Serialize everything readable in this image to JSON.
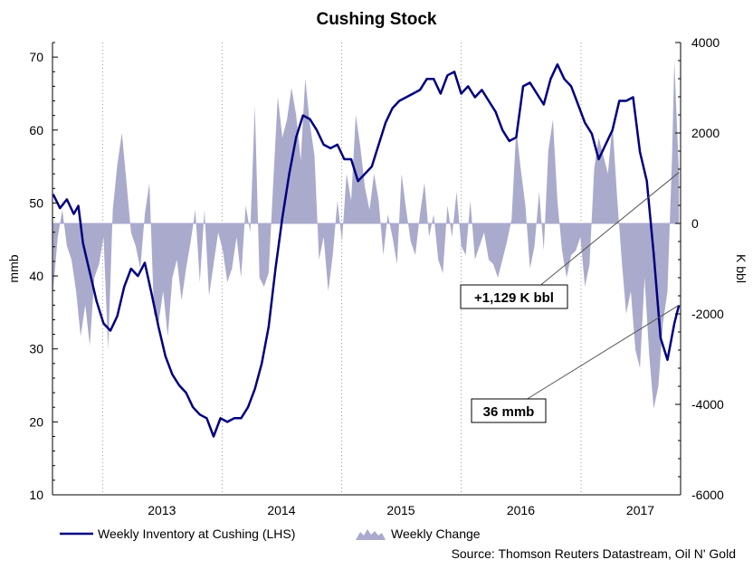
{
  "chart_data": {
    "type": "line+area",
    "title": "Cushing Stock",
    "ylabel_left": "mmb",
    "ylabel_right": "K bbl",
    "ylim_left": [
      10,
      72
    ],
    "ylim_right": [
      -6000,
      4000
    ],
    "yticks_left": [
      "10",
      "20",
      "30",
      "40",
      "50",
      "60",
      "70"
    ],
    "yticks_right": [
      "-6000",
      "-4000",
      "-2000",
      "0",
      "2000",
      "4000"
    ],
    "x_range": [
      "2012-08-01",
      "2017-11-01"
    ],
    "year_labels": [
      {
        "label": "2013",
        "date": "2013-07-01"
      },
      {
        "label": "2014",
        "date": "2014-07-01"
      },
      {
        "label": "2015",
        "date": "2015-07-01"
      },
      {
        "label": "2016",
        "date": "2016-07-01"
      },
      {
        "label": "2017",
        "date": "2017-07-01"
      }
    ],
    "year_gridlines": [
      "2013-01-01",
      "2014-01-01",
      "2015-01-01",
      "2016-01-01",
      "2017-01-01"
    ],
    "grid": "dotted vertical at year boundaries",
    "legend_placement": "bottom-left",
    "source": "Source: Thomson Reuters Datastream, Oil N' Gold",
    "annotations": [
      {
        "text": "+1,129 K bbl",
        "series": "Weekly Change",
        "date": "2017-10-27",
        "value": 1129
      },
      {
        "text": "36 mmb",
        "series": "Weekly Inventory at Cushing (LHS)",
        "date": "2017-10-27",
        "value": 36
      }
    ],
    "series": [
      {
        "name": "Weekly Inventory at Cushing (LHS)",
        "axis": "left",
        "color": "#000080",
        "points": [
          [
            "2012-08-03",
            51.2
          ],
          [
            "2012-08-24",
            49.3
          ],
          [
            "2012-09-14",
            50.5
          ],
          [
            "2012-10-05",
            48.5
          ],
          [
            "2012-10-19",
            49.6
          ],
          [
            "2012-11-02",
            44.5
          ],
          [
            "2012-11-23",
            40.5
          ],
          [
            "2012-12-14",
            36.5
          ],
          [
            "2013-01-04",
            33.5
          ],
          [
            "2013-01-25",
            32.5
          ],
          [
            "2013-02-15",
            34.5
          ],
          [
            "2013-03-08",
            38.5
          ],
          [
            "2013-03-29",
            41
          ],
          [
            "2013-04-19",
            40
          ],
          [
            "2013-05-10",
            41.8
          ],
          [
            "2013-05-31",
            37.5
          ],
          [
            "2013-06-21",
            33
          ],
          [
            "2013-07-12",
            29
          ],
          [
            "2013-08-02",
            26.5
          ],
          [
            "2013-08-23",
            25
          ],
          [
            "2013-09-13",
            24
          ],
          [
            "2013-10-04",
            22
          ],
          [
            "2013-10-25",
            21
          ],
          [
            "2013-11-15",
            20.5
          ],
          [
            "2013-12-06",
            18
          ],
          [
            "2013-12-27",
            20.5
          ],
          [
            "2014-01-17",
            20
          ],
          [
            "2014-02-07",
            20.5
          ],
          [
            "2014-02-28",
            20.5
          ],
          [
            "2014-03-21",
            22
          ],
          [
            "2014-04-11",
            24.5
          ],
          [
            "2014-05-02",
            28
          ],
          [
            "2014-05-23",
            33
          ],
          [
            "2014-06-13",
            41
          ],
          [
            "2014-07-04",
            48
          ],
          [
            "2014-07-25",
            54
          ],
          [
            "2014-08-15",
            59
          ],
          [
            "2014-09-05",
            62
          ],
          [
            "2014-09-26",
            61.5
          ],
          [
            "2014-10-17",
            60
          ],
          [
            "2014-11-07",
            58
          ],
          [
            "2014-11-28",
            57.5
          ],
          [
            "2014-12-19",
            58
          ],
          [
            "2015-01-09",
            56
          ],
          [
            "2015-01-30",
            56
          ],
          [
            "2015-02-20",
            53
          ],
          [
            "2015-03-13",
            54
          ],
          [
            "2015-04-03",
            55
          ],
          [
            "2015-04-24",
            58
          ],
          [
            "2015-05-15",
            61
          ],
          [
            "2015-06-05",
            63
          ],
          [
            "2015-06-26",
            64
          ],
          [
            "2015-07-17",
            64.5
          ],
          [
            "2015-08-07",
            65
          ],
          [
            "2015-08-28",
            65.5
          ],
          [
            "2015-09-18",
            67
          ],
          [
            "2015-10-09",
            67
          ],
          [
            "2015-10-30",
            65
          ],
          [
            "2015-11-20",
            67.5
          ],
          [
            "2015-12-11",
            68
          ],
          [
            "2016-01-01",
            65
          ],
          [
            "2016-01-22",
            66
          ],
          [
            "2016-02-12",
            64.5
          ],
          [
            "2016-03-04",
            65.5
          ],
          [
            "2016-03-25",
            64
          ],
          [
            "2016-04-15",
            62.5
          ],
          [
            "2016-05-06",
            60
          ],
          [
            "2016-05-27",
            58.5
          ],
          [
            "2016-06-17",
            59
          ],
          [
            "2016-07-08",
            66
          ],
          [
            "2016-07-29",
            66.5
          ],
          [
            "2016-08-19",
            65
          ],
          [
            "2016-09-09",
            63.5
          ],
          [
            "2016-09-30",
            67
          ],
          [
            "2016-10-21",
            69
          ],
          [
            "2016-11-11",
            67
          ],
          [
            "2016-12-02",
            66
          ],
          [
            "2016-12-23",
            63.5
          ],
          [
            "2017-01-13",
            61
          ],
          [
            "2017-02-03",
            59.5
          ],
          [
            "2017-02-24",
            56
          ],
          [
            "2017-03-17",
            58
          ],
          [
            "2017-04-07",
            60
          ],
          [
            "2017-04-28",
            64
          ],
          [
            "2017-05-19",
            64
          ],
          [
            "2017-06-09",
            64.5
          ],
          [
            "2017-06-30",
            57
          ],
          [
            "2017-07-21",
            53
          ],
          [
            "2017-08-11",
            43
          ],
          [
            "2017-09-01",
            31.5
          ],
          [
            "2017-09-22",
            28.5
          ],
          [
            "2017-10-13",
            33.5
          ],
          [
            "2017-10-27",
            36
          ]
        ]
      },
      {
        "name": "Weekly Change",
        "axis": "right",
        "color": "#aaaacc",
        "points": [
          [
            "2012-08-03",
            -1500
          ],
          [
            "2012-08-17",
            -300
          ],
          [
            "2012-08-31",
            300
          ],
          [
            "2012-09-14",
            -500
          ],
          [
            "2012-09-28",
            -800
          ],
          [
            "2012-10-12",
            -1500
          ],
          [
            "2012-10-26",
            -2500
          ],
          [
            "2012-11-09",
            -1800
          ],
          [
            "2012-11-23",
            -2700
          ],
          [
            "2012-12-07",
            -1200
          ],
          [
            "2012-12-21",
            -900
          ],
          [
            "2013-01-04",
            -300
          ],
          [
            "2013-01-18",
            -2800
          ],
          [
            "2013-02-01",
            300
          ],
          [
            "2013-02-15",
            1300
          ],
          [
            "2013-03-01",
            2000
          ],
          [
            "2013-03-15",
            900
          ],
          [
            "2013-03-29",
            -200
          ],
          [
            "2013-04-12",
            -500
          ],
          [
            "2013-04-26",
            -1000
          ],
          [
            "2013-05-10",
            200
          ],
          [
            "2013-05-24",
            900
          ],
          [
            "2013-06-07",
            -2000
          ],
          [
            "2013-06-21",
            -2200
          ],
          [
            "2013-07-05",
            -1500
          ],
          [
            "2013-07-19",
            -2500
          ],
          [
            "2013-08-02",
            -1200
          ],
          [
            "2013-08-16",
            -800
          ],
          [
            "2013-08-30",
            -1700
          ],
          [
            "2013-09-13",
            -1000
          ],
          [
            "2013-09-27",
            -400
          ],
          [
            "2013-10-11",
            300
          ],
          [
            "2013-10-25",
            -1300
          ],
          [
            "2013-11-08",
            300
          ],
          [
            "2013-11-22",
            -1600
          ],
          [
            "2013-12-06",
            -900
          ],
          [
            "2013-12-20",
            -200
          ],
          [
            "2014-01-03",
            -600
          ],
          [
            "2014-01-17",
            -1300
          ],
          [
            "2014-01-31",
            -1000
          ],
          [
            "2014-02-14",
            -300
          ],
          [
            "2014-02-28",
            -1200
          ],
          [
            "2014-03-14",
            400
          ],
          [
            "2014-03-28",
            -200
          ],
          [
            "2014-04-11",
            2600
          ],
          [
            "2014-04-25",
            -1200
          ],
          [
            "2014-05-09",
            -1400
          ],
          [
            "2014-05-23",
            -1100
          ],
          [
            "2014-06-06",
            900
          ],
          [
            "2014-06-20",
            2800
          ],
          [
            "2014-07-04",
            1900
          ],
          [
            "2014-07-18",
            2300
          ],
          [
            "2014-08-01",
            3000
          ],
          [
            "2014-08-15",
            2400
          ],
          [
            "2014-08-29",
            1400
          ],
          [
            "2014-09-12",
            3200
          ],
          [
            "2014-09-26",
            2200
          ],
          [
            "2014-10-10",
            1500
          ],
          [
            "2014-10-24",
            -800
          ],
          [
            "2014-11-07",
            -300
          ],
          [
            "2014-11-21",
            -1500
          ],
          [
            "2014-12-05",
            -700
          ],
          [
            "2014-12-19",
            500
          ],
          [
            "2015-01-02",
            -400
          ],
          [
            "2015-01-16",
            1100
          ],
          [
            "2015-01-30",
            500
          ],
          [
            "2015-02-13",
            2400
          ],
          [
            "2015-02-27",
            1700
          ],
          [
            "2015-03-13",
            800
          ],
          [
            "2015-03-27",
            300
          ],
          [
            "2015-04-10",
            1100
          ],
          [
            "2015-04-24",
            500
          ],
          [
            "2015-05-08",
            -700
          ],
          [
            "2015-05-22",
            200
          ],
          [
            "2015-06-05",
            -300
          ],
          [
            "2015-06-19",
            -900
          ],
          [
            "2015-07-03",
            1100
          ],
          [
            "2015-07-17",
            300
          ],
          [
            "2015-07-31",
            -400
          ],
          [
            "2015-08-14",
            -700
          ],
          [
            "2015-08-28",
            200
          ],
          [
            "2015-09-11",
            900
          ],
          [
            "2015-09-25",
            -300
          ],
          [
            "2015-10-09",
            200
          ],
          [
            "2015-10-23",
            -800
          ],
          [
            "2015-11-06",
            -1100
          ],
          [
            "2015-11-20",
            400
          ],
          [
            "2015-12-04",
            -300
          ],
          [
            "2015-12-18",
            700
          ],
          [
            "2016-01-01",
            -500
          ],
          [
            "2016-01-15",
            -700
          ],
          [
            "2016-01-29",
            500
          ],
          [
            "2016-02-12",
            -800
          ],
          [
            "2016-02-26",
            -500
          ],
          [
            "2016-03-11",
            -200
          ],
          [
            "2016-03-25",
            -800
          ],
          [
            "2016-04-08",
            -900
          ],
          [
            "2016-04-22",
            -1200
          ],
          [
            "2016-05-06",
            -800
          ],
          [
            "2016-05-20",
            -400
          ],
          [
            "2016-06-03",
            100
          ],
          [
            "2016-06-17",
            2100
          ],
          [
            "2016-07-01",
            1200
          ],
          [
            "2016-07-15",
            400
          ],
          [
            "2016-07-29",
            -1000
          ],
          [
            "2016-08-12",
            -500
          ],
          [
            "2016-08-26",
            700
          ],
          [
            "2016-09-09",
            -600
          ],
          [
            "2016-09-23",
            1600
          ],
          [
            "2016-10-07",
            2300
          ],
          [
            "2016-10-21",
            500
          ],
          [
            "2016-11-04",
            -600
          ],
          [
            "2016-11-18",
            -1200
          ],
          [
            "2016-12-02",
            -700
          ],
          [
            "2016-12-16",
            -600
          ],
          [
            "2016-12-30",
            -300
          ],
          [
            "2017-01-13",
            -1400
          ],
          [
            "2017-01-27",
            -900
          ],
          [
            "2017-02-10",
            1200
          ],
          [
            "2017-02-24",
            1900
          ],
          [
            "2017-03-10",
            1500
          ],
          [
            "2017-03-24",
            1100
          ],
          [
            "2017-04-07",
            2200
          ],
          [
            "2017-04-21",
            600
          ],
          [
            "2017-05-05",
            -800
          ],
          [
            "2017-05-19",
            -2000
          ],
          [
            "2017-06-02",
            -1500
          ],
          [
            "2017-06-16",
            -2800
          ],
          [
            "2017-06-30",
            -3200
          ],
          [
            "2017-07-14",
            -1200
          ],
          [
            "2017-07-28",
            -2900
          ],
          [
            "2017-08-11",
            -4100
          ],
          [
            "2017-08-25",
            -3600
          ],
          [
            "2017-09-08",
            -2200
          ],
          [
            "2017-09-22",
            -1500
          ],
          [
            "2017-10-06",
            1500
          ],
          [
            "2017-10-13",
            3600
          ],
          [
            "2017-10-20",
            2300
          ],
          [
            "2017-10-27",
            1129
          ]
        ]
      }
    ]
  }
}
